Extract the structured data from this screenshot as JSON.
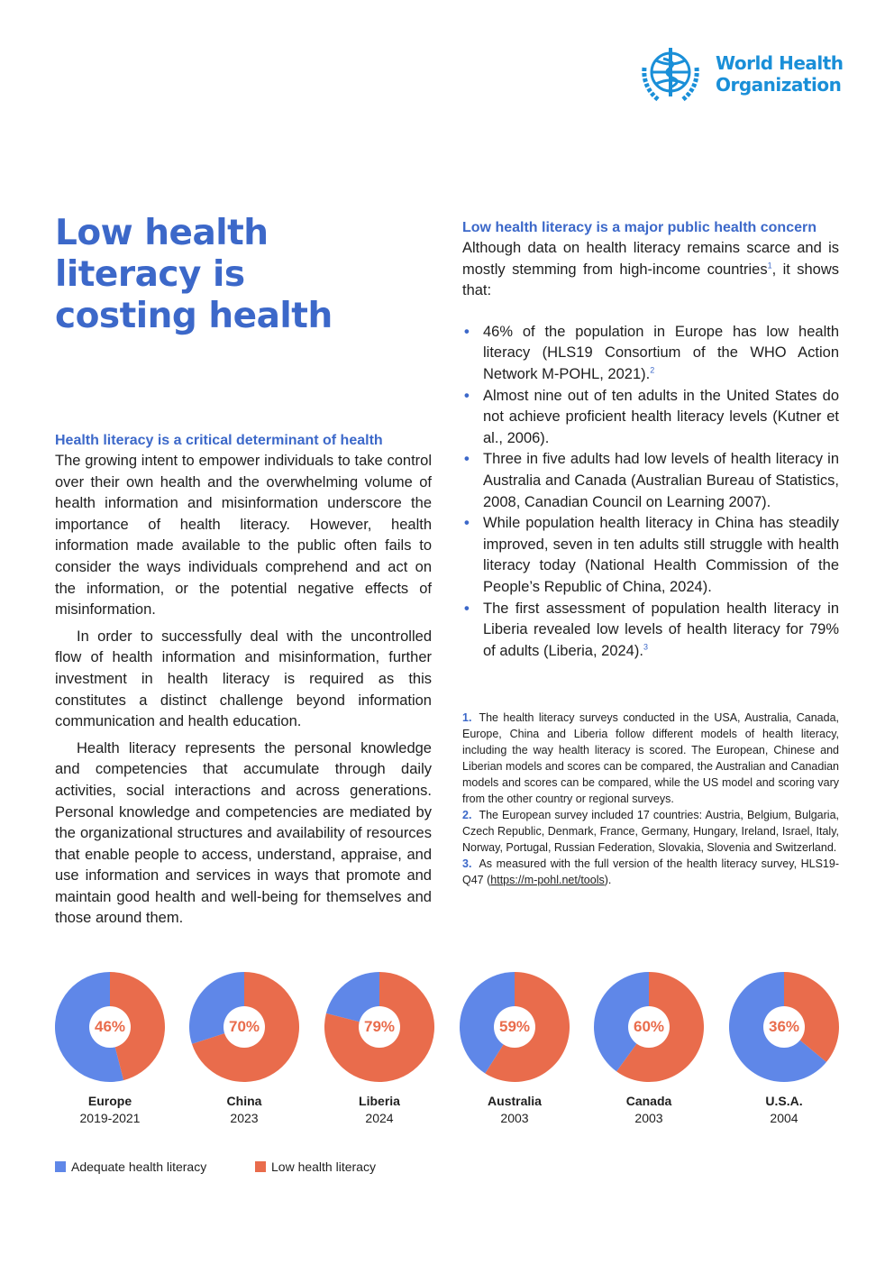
{
  "org": {
    "name_line1": "World Health",
    "name_line2": "Organization",
    "logo_color": "#1a8fd8"
  },
  "title": "Low health literacy is costing health",
  "left": {
    "heading": "Health literacy is a critical determinant of health",
    "paragraphs": [
      "The growing intent to empower individuals to take control over their own health and the overwhelming volume of health information and misinformation underscore the importance of health literacy. However, health information made available to the public often fails to consider the ways individuals comprehend and act on the information, or the potential negative effects of misinformation.",
      "In order to successfully deal with the uncontrolled flow of health information and misinformation, further investment in health literacy is required as this constitutes a distinct challenge beyond information communication and health education.",
      "Health literacy represents the personal knowledge and competencies that accumulate through daily activities, social interactions and across generations. Personal knowledge and competencies are mediated by the organizational structures and availability of resources that enable people to access, understand, appraise, and use information and services in ways that promote and maintain good health and well-being for themselves and those around them."
    ]
  },
  "right": {
    "heading": "Low health literacy is a major public health concern",
    "intro_a": "Although data on health literacy remains scarce and is mostly stemming from high-income countries",
    "intro_sup": "1",
    "intro_b": ", it shows that:",
    "bullets": [
      {
        "text": "46% of the population in Europe has low health literacy (HLS19 Consortium of the WHO Action Network M-POHL, 2021).",
        "sup": "2"
      },
      {
        "text": "Almost nine out of ten adults in the United States do not achieve proficient health literacy levels (Kutner et al., 2006).",
        "sup": ""
      },
      {
        "text": "Three in five adults had low levels of health literacy in Australia and Canada (Australian Bureau of Statistics, 2008, Canadian Council on Learning 2007).",
        "sup": ""
      },
      {
        "text": "While population health literacy in China has steadily improved, seven in ten adults still struggle with health literacy today (National Health Commission of the People’s Republic of China, 2024).",
        "sup": ""
      },
      {
        "text": "The first assessment of population health literacy in Liberia revealed low levels of health literacy for 79% of adults (Liberia, 2024).",
        "sup": "3"
      }
    ]
  },
  "footnotes": [
    {
      "num": "1.",
      "text": "The health literacy surveys conducted in the USA, Australia, Canada, Europe, China and Liberia follow different models of health literacy, including the way health literacy is scored. The European, Chinese and Liberian models and scores can be compared, the Australian and Canadian models and scores can be compared, while the US model and scoring vary from the other country or regional surveys."
    },
    {
      "num": "2.",
      "text": "The European survey included 17 countries: Austria, Belgium, Bulgaria, Czech Republic, Denmark, France, Germany, Hungary, Ireland, Israel, Italy, Norway, Portugal, Russian Federation, Slovakia, Slovenia and Switzerland."
    },
    {
      "num": "3.",
      "text_a": "As measured with the full version of the health literacy survey, HLS19-Q47 (",
      "link": "https://m-pohl.net/tools",
      "text_b": ")."
    }
  ],
  "chart_data": {
    "type": "pie",
    "variant": "donut",
    "series_labels": [
      "Adequate health literacy",
      "Low health literacy"
    ],
    "colors": {
      "adequate": "#5f87e8",
      "low": "#e96c4c"
    },
    "items": [
      {
        "country": "Europe",
        "period": "2019-2021",
        "low": 46,
        "label": "46%"
      },
      {
        "country": "China",
        "period": "2023",
        "low": 70,
        "label": "70%"
      },
      {
        "country": "Liberia",
        "period": "2024",
        "low": 79,
        "label": "79%"
      },
      {
        "country": "Australia",
        "period": "2003",
        "low": 59,
        "label": "59%"
      },
      {
        "country": "Canada",
        "period": "2003",
        "low": 60,
        "label": "60%"
      },
      {
        "country": "U.S.A.",
        "period": "2004",
        "low": 36,
        "label": "36%"
      }
    ]
  }
}
